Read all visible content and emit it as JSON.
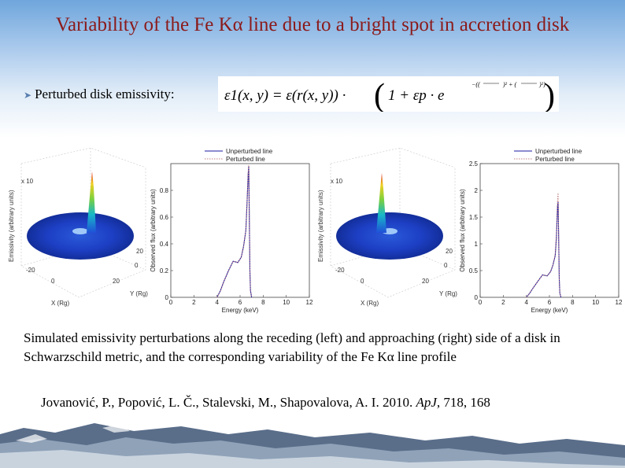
{
  "title": "Variability of the Fe Kα line due to a bright spot in accretion disk",
  "bullet": {
    "label": "Perturbed disk emissivity:",
    "formula_lhs": "ε1(x, y) = ε(r(x, y)) ·",
    "formula_rhs": "1 + εp · e"
  },
  "panels": [
    {
      "surface": {
        "zlabel": "Emissivity (arbitrary units)",
        "zscale": "x 10",
        "xlabel": "X (Rg)",
        "ylabel": "Y (Rg)",
        "ticks_x": [
          "-20",
          "0",
          "20"
        ],
        "ticks_y": [
          "20",
          "0",
          "-20"
        ]
      },
      "chart_data": {
        "type": "line",
        "xlabel": "Energy (keV)",
        "ylabel": "Observed flux (arbitrary units)",
        "xlim": [
          0,
          12
        ],
        "ylim": [
          0,
          1
        ],
        "xticks": [
          "0",
          "2",
          "4",
          "6",
          "8",
          "10",
          "12"
        ],
        "yticks": [
          "0",
          "0.2",
          "0.4",
          "0.6",
          "0.8"
        ],
        "legend": "top-right",
        "series": [
          {
            "name": "Unperturbed line",
            "x": [
              4.0,
              4.3,
              4.6,
              5.0,
              5.4,
              5.8,
              6.1,
              6.3,
              6.5,
              6.6,
              6.7,
              6.75,
              6.8,
              6.85,
              6.9,
              7.0
            ],
            "y": [
              0.0,
              0.05,
              0.12,
              0.2,
              0.27,
              0.26,
              0.3,
              0.38,
              0.5,
              0.7,
              0.92,
              0.98,
              0.6,
              0.2,
              0.05,
              0.0
            ]
          },
          {
            "name": "Perturbed line",
            "x": [
              4.0,
              4.3,
              4.6,
              5.0,
              5.4,
              5.8,
              6.1,
              6.3,
              6.5,
              6.6,
              6.7,
              6.75,
              6.8,
              6.85,
              6.9,
              7.0
            ],
            "y": [
              0.0,
              0.05,
              0.12,
              0.2,
              0.27,
              0.26,
              0.3,
              0.38,
              0.5,
              0.7,
              0.93,
              0.99,
              0.6,
              0.2,
              0.05,
              0.0
            ]
          }
        ]
      }
    },
    {
      "surface": {
        "zlabel": "Emissivity (arbitrary units)",
        "zscale": "x 10",
        "xlabel": "X (Rg)",
        "ylabel": "Y (Rg)",
        "ticks_x": [
          "-20",
          "0",
          "20"
        ],
        "ticks_y": [
          "20",
          "0",
          "-20"
        ]
      },
      "chart_data": {
        "type": "line",
        "xlabel": "Energy (keV)",
        "ylabel": "Observed flux (arbitrary units)",
        "xlim": [
          0,
          12
        ],
        "ylim": [
          0,
          2.5
        ],
        "xticks": [
          "0",
          "2",
          "4",
          "6",
          "8",
          "10",
          "12"
        ],
        "yticks": [
          "0",
          "0.5",
          "1",
          "1.5",
          "2",
          "2.5"
        ],
        "legend": "top-right",
        "series": [
          {
            "name": "Unperturbed line",
            "x": [
              4.0,
              4.3,
              4.6,
              5.0,
              5.4,
              5.8,
              6.1,
              6.3,
              6.5,
              6.6,
              6.7,
              6.75,
              6.8,
              6.85,
              6.9,
              7.0
            ],
            "y": [
              0.0,
              0.08,
              0.18,
              0.3,
              0.42,
              0.4,
              0.48,
              0.6,
              0.78,
              1.1,
              1.7,
              1.78,
              1.1,
              0.35,
              0.08,
              0.0
            ]
          },
          {
            "name": "Perturbed line",
            "x": [
              4.0,
              4.3,
              4.6,
              5.0,
              5.4,
              5.8,
              6.1,
              6.3,
              6.5,
              6.6,
              6.7,
              6.75,
              6.8,
              6.85,
              6.9,
              7.0
            ],
            "y": [
              0.0,
              0.08,
              0.18,
              0.3,
              0.42,
              0.4,
              0.48,
              0.6,
              0.8,
              1.15,
              1.8,
              1.95,
              1.15,
              0.35,
              0.08,
              0.0
            ]
          }
        ]
      }
    }
  ],
  "caption": "Simulated emissivity perturbations along the receding (left) and approaching (right) side of a disk in Schwarzschild metric, and the corresponding variability of the Fe Kα line profile",
  "reference": {
    "authors": "Jovanović, P., Popović, L. Č., Stalevski, M., Shapovalova, A. I. 2010.",
    "journal": "ApJ",
    "rest": ", 718, 168"
  },
  "colors": {
    "title": "#8b1a1a",
    "unperturbed": "#1a1aa0",
    "perturbed": "#c08080"
  }
}
